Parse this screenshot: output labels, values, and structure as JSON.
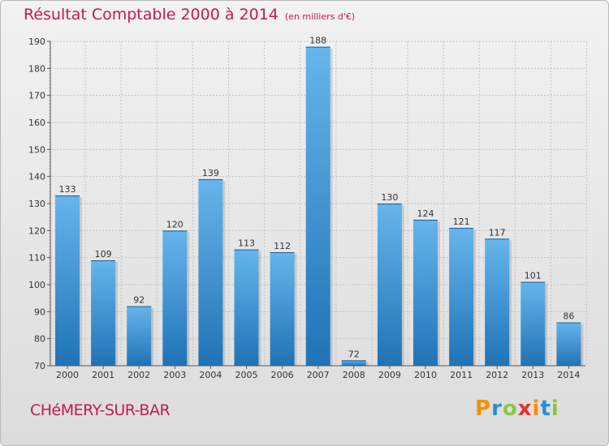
{
  "title": "Résultat Comptable 2000 à 2014",
  "subtitle": "(en milliers d'€)",
  "commune": "CHéMERY-SUR-BAR",
  "logo": {
    "letters": [
      "P",
      "r",
      "o",
      "x",
      "i",
      "t",
      "i"
    ],
    "colors": [
      "#f39200",
      "#2a8fd4",
      "#8cc63f",
      "#e4312b",
      "#f39200",
      "#2a8fd4",
      "#8cc63f"
    ]
  },
  "colors": {
    "bar_top": "#66b5ec",
    "bar_bottom": "#1f73b6",
    "accent": "#c8194e"
  },
  "chart_data": {
    "type": "bar",
    "title": "Résultat Comptable 2000 à 2014",
    "categories": [
      "2000",
      "2001",
      "2002",
      "2003",
      "2004",
      "2005",
      "2006",
      "2007",
      "2008",
      "2009",
      "2010",
      "2011",
      "2012",
      "2013",
      "2014"
    ],
    "values": [
      133,
      109,
      92,
      120,
      139,
      113,
      112,
      188,
      72,
      130,
      124,
      121,
      117,
      101,
      86
    ],
    "ylim": [
      70,
      190
    ],
    "yticks": [
      70,
      80,
      90,
      100,
      110,
      120,
      130,
      140,
      150,
      160,
      170,
      180,
      190
    ],
    "xlabel": "",
    "ylabel": "",
    "grid": true
  }
}
